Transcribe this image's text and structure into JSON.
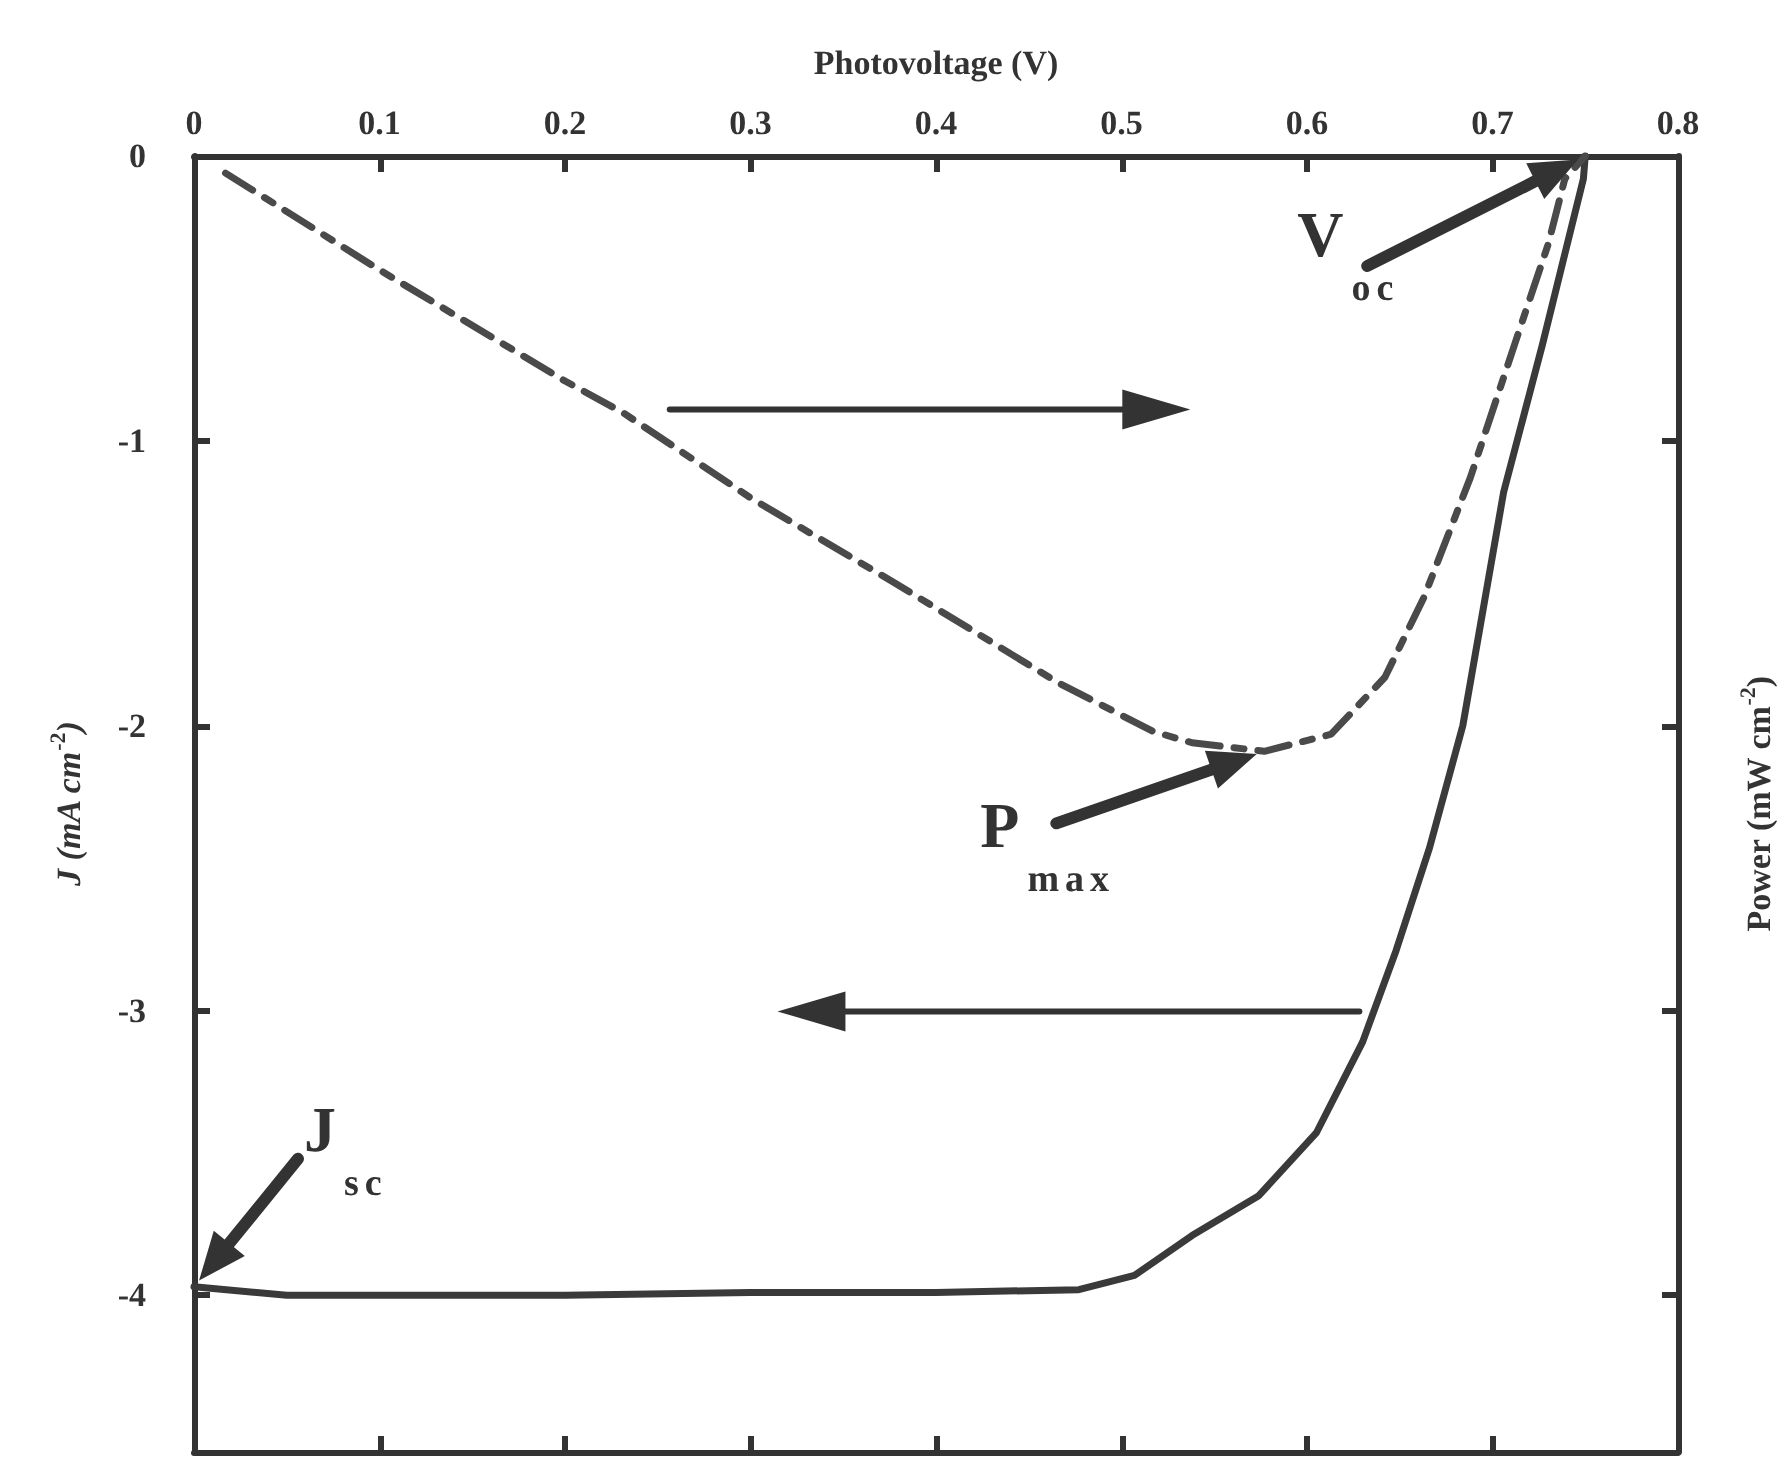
{
  "chart_data": {
    "type": "line",
    "xlabel": "Photovoltage (V)",
    "ylabel": "J (mA cm$^{-2}$)",
    "y2label": "Power (mW cm$^{-2}$)",
    "xlim": [
      0,
      0.8
    ],
    "xticks": [
      0,
      0.1,
      0.2,
      0.3,
      0.4,
      0.5,
      0.6,
      0.7,
      0.8
    ],
    "ylim": [
      -4.55,
      0
    ],
    "yticks": [
      -4,
      -3,
      -2,
      -1,
      0
    ],
    "grid": false,
    "marker": "none",
    "series": [
      {
        "color": "#3a3a3a",
        "line_style": "solid",
        "x": [
          0,
          0.05,
          0.1,
          0.2,
          0.3,
          0.4,
          0.477,
          0.507,
          0.538,
          0.574,
          0.605,
          0.63,
          0.648,
          0.666,
          0.684,
          0.706,
          0.727,
          0.749,
          0.75
        ],
        "values": [
          -3.97,
          -4.0,
          -4.0,
          -4.0,
          -3.99,
          -3.99,
          -3.98,
          -3.93,
          -3.79,
          -3.65,
          -3.43,
          -3.11,
          -2.79,
          -2.43,
          -2.0,
          -1.18,
          -0.66,
          -0.08,
          0
        ]
      },
      {
        "color": "#4a4a4a",
        "line_style": "dashed",
        "x": [
          0.017,
          0.1,
          0.2,
          0.231,
          0.3,
          0.378,
          0.466,
          0.517,
          0.538,
          0.577,
          0.613,
          0.642,
          0.663,
          0.688,
          0.712,
          0.73,
          0.739,
          0.75
        ],
        "values": [
          -0.06,
          -0.4,
          -0.79,
          -0.9,
          -1.2,
          -1.5,
          -1.85,
          -2.02,
          -2.06,
          -2.09,
          -2.03,
          -1.83,
          -1.55,
          -1.13,
          -0.66,
          -0.31,
          -0.08,
          0
        ]
      }
    ],
    "annotations": [
      {
        "text": "V$_{oc}$",
        "x": 0.75,
        "y": 0
      },
      {
        "text": "P$_{max}$",
        "x": 0.577,
        "y": -2.09
      },
      {
        "text": "J$_{sc}$",
        "x": 0,
        "y": -3.97
      }
    ]
  }
}
